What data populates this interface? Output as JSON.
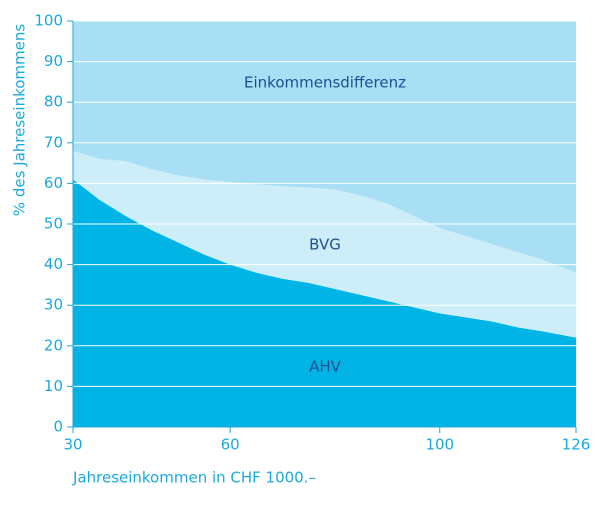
{
  "chart_data": {
    "type": "stacked_area",
    "x_label": "Jahreseinkommen in CHF 1000.–",
    "y_label": "% des Jahreseinkommens",
    "x": [
      30,
      35,
      40,
      45,
      50,
      55,
      60,
      65,
      70,
      75,
      80,
      85,
      90,
      95,
      100,
      105,
      110,
      115,
      120,
      126
    ],
    "series": [
      {
        "name": "AHV",
        "color": "#00b4e6",
        "values": [
          61,
          56,
          52,
          48.5,
          45.5,
          42.5,
          40,
          38,
          36.5,
          35.5,
          34,
          32.5,
          31,
          29.5,
          28,
          27,
          26,
          24.5,
          23.5,
          22
        ]
      },
      {
        "name": "BVG",
        "color": "#cdeef9",
        "values": [
          7,
          10,
          13.5,
          15,
          16.5,
          18.5,
          20.3,
          21.8,
          22.8,
          23.5,
          24.5,
          24.5,
          24,
          22.5,
          21,
          20,
          19,
          18.5,
          17.5,
          16
        ]
      },
      {
        "name": "Einkommensdifferenz",
        "color": "#a8dff5",
        "values": [
          32,
          34,
          34.5,
          36.5,
          38,
          39,
          39.7,
          40.2,
          40.7,
          41,
          41.5,
          43,
          45,
          48,
          51,
          53,
          55,
          57,
          59,
          62
        ]
      }
    ],
    "xlim": [
      30,
      126
    ],
    "xticks": [
      30,
      60,
      100,
      126
    ],
    "ylim": [
      0,
      100
    ],
    "yticks": [
      0,
      10,
      20,
      30,
      40,
      50,
      60,
      70,
      80,
      90,
      100
    ],
    "grid": true
  }
}
